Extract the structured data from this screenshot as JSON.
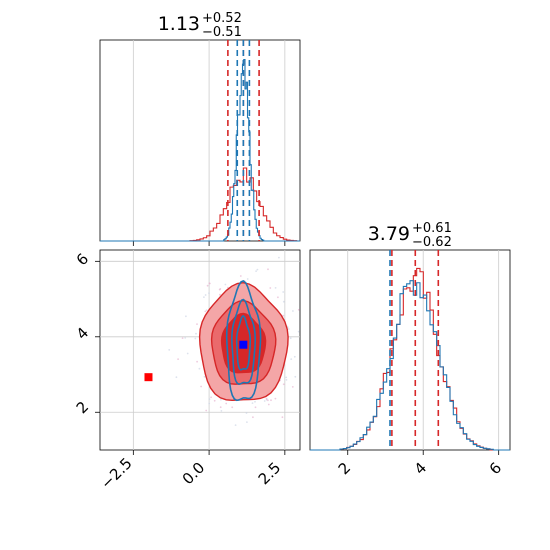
{
  "figure": {
    "colors": {
      "red": "#d62728",
      "blue": "#1f77b4",
      "red_fill_outer": "#f4a6a7",
      "red_fill_mid": "#ea6a6c",
      "red_fill_inner": "#d62728",
      "blue_marker": "#0000ff",
      "red_marker": "#ff0000",
      "grid": "#cccccc"
    },
    "panels": {
      "top_left": {
        "title": "1.13",
        "title_sup": "+0.52",
        "title_sub": "−0.51"
      },
      "bottom_right": {
        "title": "3.79",
        "title_sup": "+0.61",
        "title_sub": "−0.62"
      }
    },
    "x_ticks_param1": [
      "−2.5",
      "0.0",
      "2.5"
    ],
    "y_ticks_param2": [
      "2",
      "4",
      "6"
    ],
    "x_ticks_param2": [
      "2",
      "4",
      "6"
    ]
  },
  "chart_data": [
    {
      "type": "histogram",
      "panel": "top-left",
      "parameter": 1,
      "xlim": [
        -3.6,
        3.0
      ],
      "series": [
        {
          "color": "red",
          "center": 1.13,
          "spread": 0.52,
          "peak_fraction": 0.33
        },
        {
          "color": "blue",
          "center": 1.13,
          "spread": 0.2,
          "peak_fraction": 0.8
        }
      ],
      "quantile_lines": [
        {
          "color": "red",
          "values": [
            0.62,
            1.13,
            1.65
          ]
        },
        {
          "color": "blue",
          "values": [
            0.93,
            1.13,
            1.33
          ]
        }
      ],
      "grid": true
    },
    {
      "type": "scatter",
      "panel": "bottom-left",
      "xlim": [
        -3.6,
        3.0
      ],
      "ylim": [
        1.0,
        6.3
      ],
      "contours": [
        {
          "color": "red",
          "levels": [
            {
              "rx": 1.45,
              "ry": 1.55
            },
            {
              "rx": 1.05,
              "ry": 1.1
            },
            {
              "rx": 0.72,
              "ry": 0.78
            }
          ]
        },
        {
          "color": "blue",
          "levels": [
            {
              "rx": 0.55,
              "ry": 1.55
            },
            {
              "rx": 0.38,
              "ry": 1.1
            },
            {
              "rx": 0.22,
              "ry": 0.7
            }
          ]
        }
      ],
      "markers": [
        {
          "color": "blue_marker",
          "x": 1.13,
          "y": 3.79
        },
        {
          "color": "red_marker",
          "x": -2.0,
          "y": 2.93
        }
      ],
      "grid": true
    },
    {
      "type": "histogram",
      "panel": "bottom-right",
      "parameter": 2,
      "xlim": [
        1.0,
        6.3
      ],
      "series": [
        {
          "color": "red",
          "center": 3.79,
          "spread": 0.61,
          "peak_fraction": 0.85
        },
        {
          "color": "blue",
          "center": 3.79,
          "spread": 0.61,
          "peak_fraction": 0.85
        }
      ],
      "quantile_lines": [
        {
          "color": "red",
          "values": [
            3.17,
            3.79,
            4.4
          ]
        },
        {
          "color": "blue",
          "values": [
            3.12
          ]
        }
      ],
      "grid": true
    }
  ]
}
